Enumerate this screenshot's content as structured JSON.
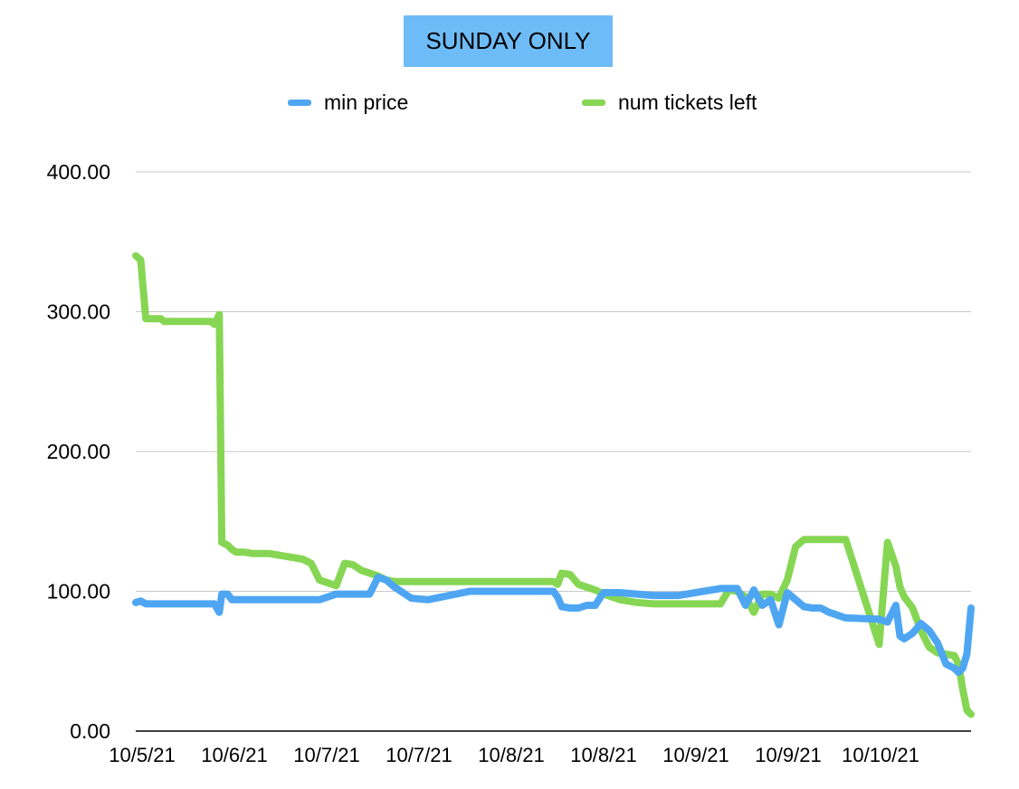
{
  "chart_data": {
    "type": "line",
    "title": "SUNDAY ONLY",
    "title_background": "#6ebcf7",
    "legend_position": "top",
    "grid": true,
    "ylim": [
      0,
      400
    ],
    "y_ticks": [
      "0.00",
      "100.00",
      "200.00",
      "300.00",
      "400.00"
    ],
    "x_tick_labels": [
      "10/5/21",
      "10/6/21",
      "10/7/21",
      "10/7/21",
      "10/8/21",
      "10/8/21",
      "10/9/21",
      "10/9/21",
      "10/10/21"
    ],
    "x": [
      0,
      0.006,
      0.012,
      0.03,
      0.034,
      0.06,
      0.09,
      0.094,
      0.1,
      0.103,
      0.11,
      0.115,
      0.12,
      0.13,
      0.14,
      0.15,
      0.16,
      0.2,
      0.21,
      0.22,
      0.24,
      0.25,
      0.26,
      0.27,
      0.28,
      0.29,
      0.3,
      0.31,
      0.33,
      0.35,
      0.4,
      0.45,
      0.5,
      0.505,
      0.51,
      0.52,
      0.53,
      0.54,
      0.55,
      0.56,
      0.57,
      0.58,
      0.6,
      0.62,
      0.65,
      0.7,
      0.71,
      0.72,
      0.73,
      0.74,
      0.75,
      0.76,
      0.77,
      0.78,
      0.79,
      0.8,
      0.81,
      0.82,
      0.83,
      0.85,
      0.89,
      0.9,
      0.91,
      0.915,
      0.92,
      0.93,
      0.94,
      0.95,
      0.96,
      0.97,
      0.98,
      0.985,
      0.99,
      0.995,
      1.0
    ],
    "series": [
      {
        "name": "min price",
        "color": "#4ea6f2",
        "values": [
          92,
          93,
          91,
          91,
          91,
          91,
          91,
          91,
          85,
          98,
          98,
          94,
          94,
          94,
          94,
          94,
          94,
          94,
          94,
          94,
          98,
          98,
          98,
          98,
          98,
          110,
          108,
          103,
          95,
          94,
          100,
          100,
          100,
          96,
          89,
          88,
          88,
          90,
          90,
          99,
          99,
          99,
          98,
          97,
          97,
          102,
          102,
          102,
          90,
          101,
          90,
          94,
          76,
          99,
          94,
          89,
          88,
          88,
          85,
          81,
          80,
          78,
          90,
          68,
          66,
          70,
          77,
          72,
          63,
          48,
          45,
          42,
          45,
          55,
          88
        ]
      },
      {
        "name": "num tickets left",
        "color": "#86d654",
        "values": [
          340,
          337,
          295,
          295,
          293,
          293,
          293,
          291,
          298,
          135,
          133,
          130,
          128,
          128,
          127,
          127,
          127,
          123,
          120,
          108,
          104,
          120,
          119,
          115,
          113,
          111,
          108,
          107,
          107,
          107,
          107,
          107,
          107,
          105,
          113,
          112,
          105,
          103,
          101,
          98,
          96,
          94,
          92,
          91,
          91,
          91,
          101,
          100,
          96,
          85,
          98,
          98,
          95,
          108,
          132,
          137,
          137,
          137,
          137,
          137,
          62,
          135,
          118,
          103,
          96,
          88,
          72,
          60,
          56,
          55,
          54,
          48,
          30,
          15,
          12
        ]
      }
    ]
  }
}
